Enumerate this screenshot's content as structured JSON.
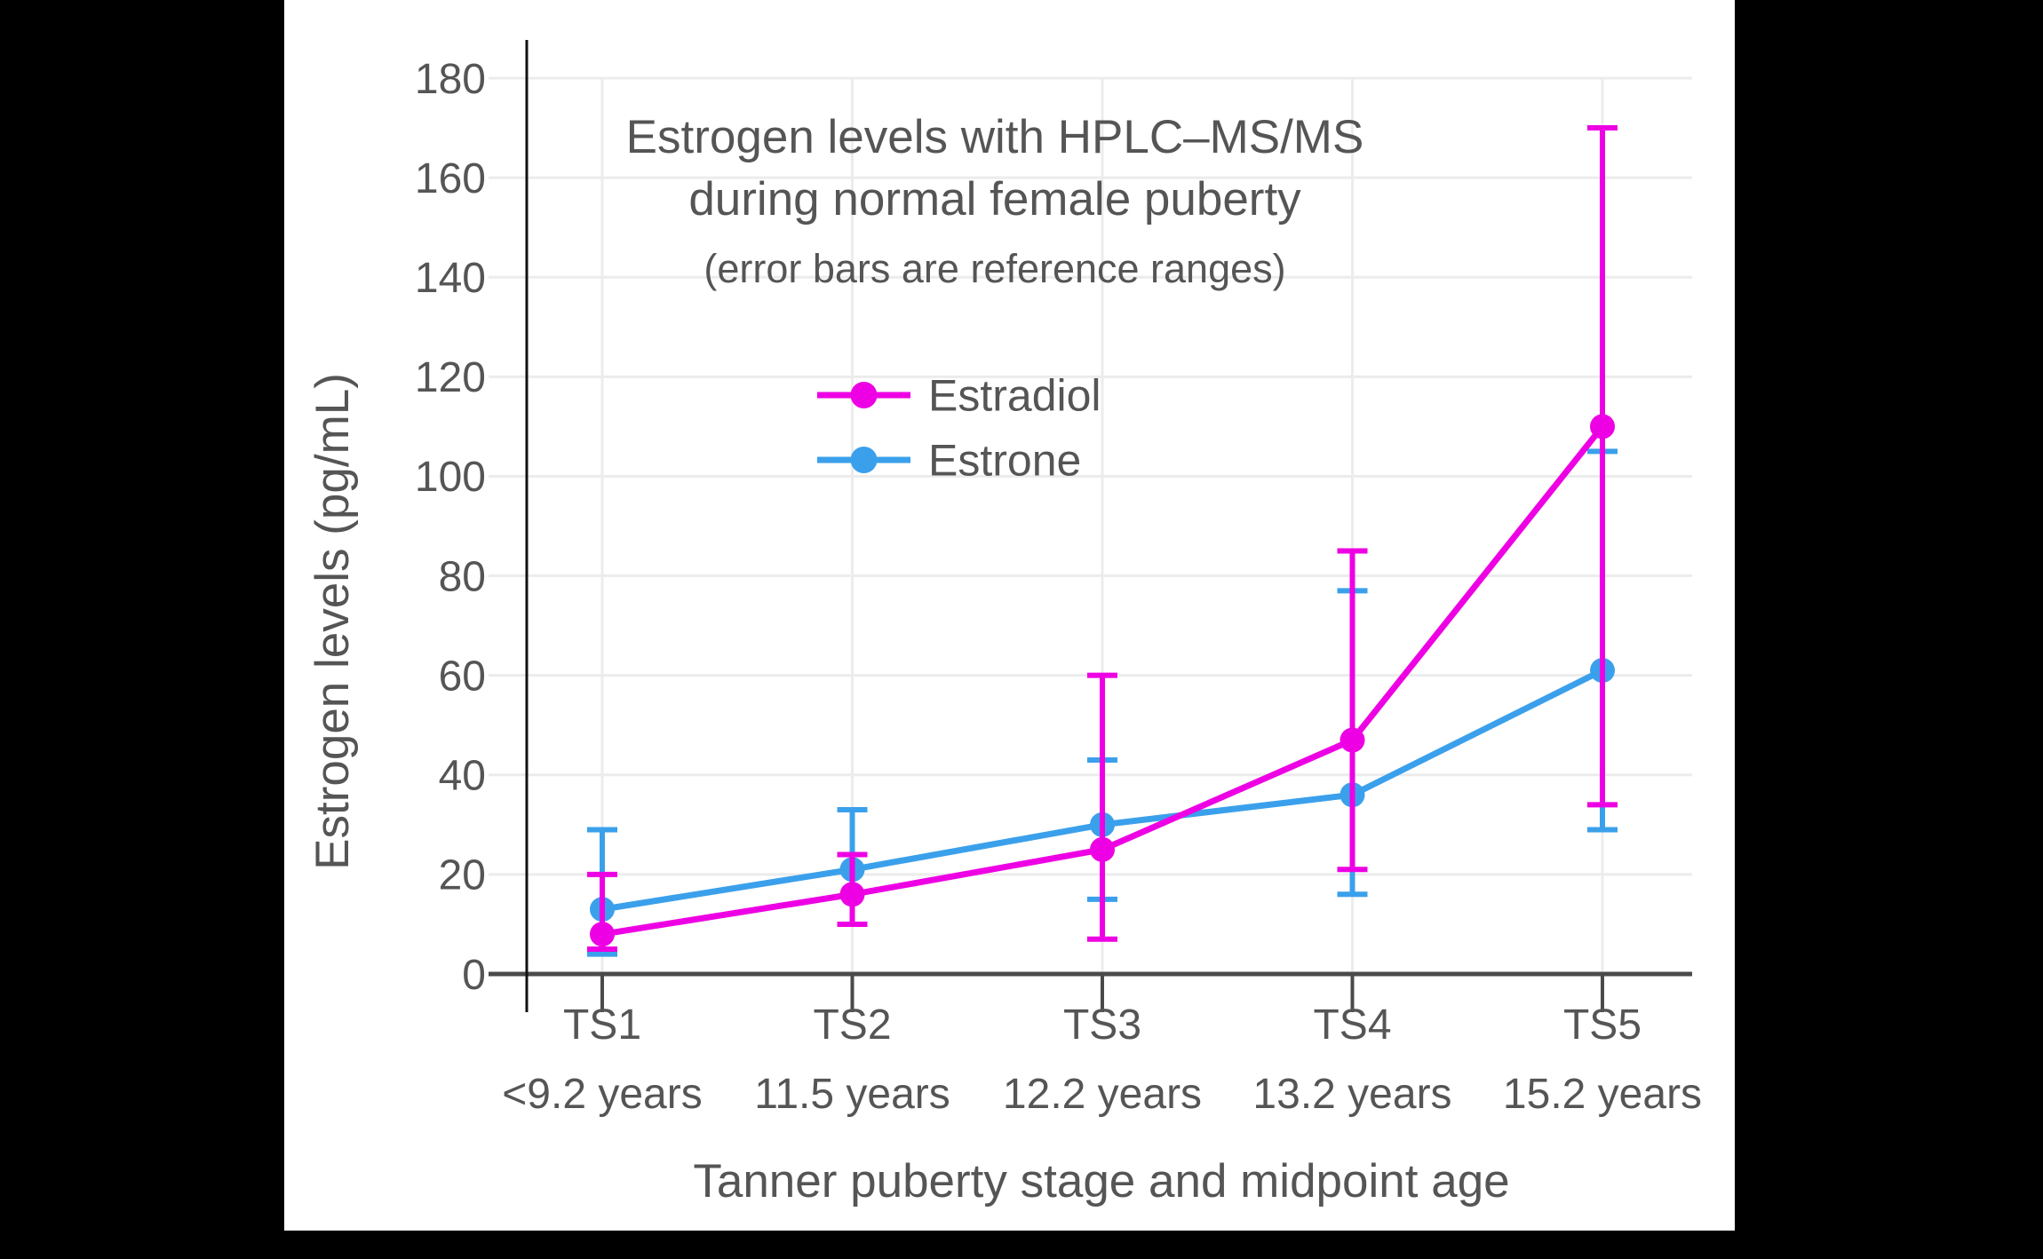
{
  "page": {
    "background_color": "#000000",
    "card_background_color": "#ffffff"
  },
  "chart_data": {
    "type": "line",
    "title_line1": "Estrogen levels with HPLC–MS/MS",
    "title_line2": "during normal female puberty",
    "subtitle": "(error bars are reference ranges)",
    "xlabel": "Tanner puberty stage and midpoint age",
    "ylabel": "Estrogen levels (pg/mL)",
    "categories": [
      "TS1",
      "TS2",
      "TS3",
      "TS4",
      "TS5"
    ],
    "category_sublabels": [
      "<9.2 years",
      "11.5 years",
      "12.2 years",
      "13.2 years",
      "15.2 years"
    ],
    "y_ticks": [
      0,
      20,
      40,
      60,
      80,
      100,
      120,
      140,
      160,
      180
    ],
    "ylim": [
      0,
      186
    ],
    "grid": true,
    "error_bars": "reference ranges",
    "legend_position": "upper-center-inside",
    "series": [
      {
        "name": "Estradiol",
        "color": "#EE00E4",
        "values": [
          8,
          16,
          25,
          47,
          110
        ],
        "error_low": [
          5,
          10,
          7,
          21,
          34
        ],
        "error_high": [
          20,
          24,
          60,
          85,
          170
        ]
      },
      {
        "name": "Estrone",
        "color": "#3BA0EB",
        "values": [
          13,
          21,
          30,
          36,
          61
        ],
        "error_low": [
          4,
          10,
          15,
          16,
          29
        ],
        "error_high": [
          29,
          33,
          43,
          77,
          105
        ]
      }
    ],
    "text_color": "#555555",
    "grid_color": "#ececec",
    "x_axis_color": "#4a4a4a",
    "y_axis_color": "#111111"
  }
}
